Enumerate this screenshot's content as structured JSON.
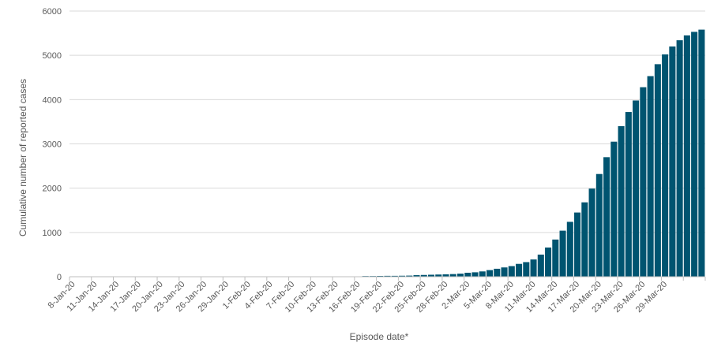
{
  "chart_data": {
    "type": "bar",
    "title": "",
    "xlabel": "Episode date*",
    "ylabel": "Cumulative number of reported cases",
    "ylim": [
      0,
      6000
    ],
    "yticks": [
      0,
      1000,
      2000,
      3000,
      4000,
      5000,
      6000
    ],
    "grid": true,
    "bar_color": "#005470",
    "start_date": "8-Jan-20",
    "x_tick_labels": [
      "8-Jan-20",
      "11-Jan-20",
      "14-Jan-20",
      "17-Jan-20",
      "20-Jan-20",
      "23-Jan-20",
      "26-Jan-20",
      "29-Jan-20",
      "1-Feb-20",
      "4-Feb-20",
      "7-Feb-20",
      "10-Feb-20",
      "13-Feb-20",
      "16-Feb-20",
      "19-Feb-20",
      "22-Feb-20",
      "25-Feb-20",
      "28-Feb-20",
      "2-Mar-20",
      "5-Mar-20",
      "8-Mar-20",
      "11-Mar-20",
      "14-Mar-20",
      "17-Mar-20",
      "20-Mar-20",
      "23-Mar-20",
      "26-Mar-20",
      "29-Mar-20"
    ],
    "values": [
      0,
      0,
      0,
      0,
      0,
      0,
      0,
      0,
      0,
      0,
      0,
      0,
      0,
      0,
      0,
      0,
      0,
      0,
      0,
      0,
      0,
      0,
      0,
      0,
      0,
      0,
      0,
      0,
      0,
      0,
      0,
      0,
      0,
      0,
      0,
      0,
      0,
      0,
      0,
      0,
      15,
      15,
      18,
      20,
      20,
      22,
      25,
      35,
      40,
      45,
      50,
      55,
      60,
      70,
      90,
      100,
      120,
      150,
      180,
      210,
      240,
      290,
      330,
      390,
      500,
      660,
      840,
      1040,
      1240,
      1450,
      1680,
      1990,
      2320,
      2700,
      3050,
      3400,
      3720,
      3980,
      4280,
      4530,
      4800,
      5020,
      5200,
      5340,
      5450,
      5530,
      5580
    ],
    "last_date": "1-Apr-20"
  }
}
